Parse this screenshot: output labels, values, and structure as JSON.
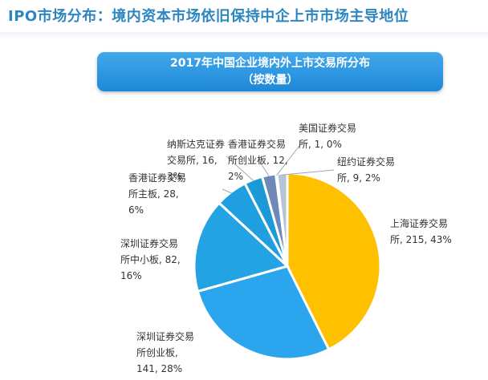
{
  "header": {
    "title": "IPO市场分布：境内资本市场依旧保持中企上市市场主导地位"
  },
  "chart_data": {
    "type": "pie",
    "title_line1": "2017年中国企业境内外上市交易所分布",
    "title_line2": "（按数量）",
    "slices": [
      {
        "label_lines": [
          "上海证券交易",
          "所, 215, 43%"
        ],
        "value": 215,
        "percent": 43,
        "color": "#ffc000"
      },
      {
        "label_lines": [
          "深圳证券交易",
          "所创业板,",
          "141, 28%"
        ],
        "value": 141,
        "percent": 28,
        "color": "#2aa5ee"
      },
      {
        "label_lines": [
          "深圳证券交易",
          "所中小板, 82,",
          "16%"
        ],
        "value": 82,
        "percent": 16,
        "color": "#23a3e3"
      },
      {
        "label_lines": [
          "香港证券交易",
          "所主板, 28,",
          "6%"
        ],
        "value": 28,
        "percent": 6,
        "color": "#1f9fe0"
      },
      {
        "label_lines": [
          "纳斯达克证券",
          "交易所, 16,",
          "3%"
        ],
        "value": 16,
        "percent": 3,
        "color": "#1c9ad8"
      },
      {
        "label_lines": [
          "香港证券交易",
          "所创业板, 12,",
          "2%"
        ],
        "value": 12,
        "percent": 2,
        "color": "#6e88b8"
      },
      {
        "label_lines": [
          "美国证券交易",
          "所, 1, 0%"
        ],
        "value": 1,
        "percent": 0,
        "color": "#8aa0c8"
      },
      {
        "label_lines": [
          "纽约证券交易",
          "所, 9, 2%"
        ],
        "value": 9,
        "percent": 2,
        "color": "#b7c3d6"
      }
    ]
  }
}
